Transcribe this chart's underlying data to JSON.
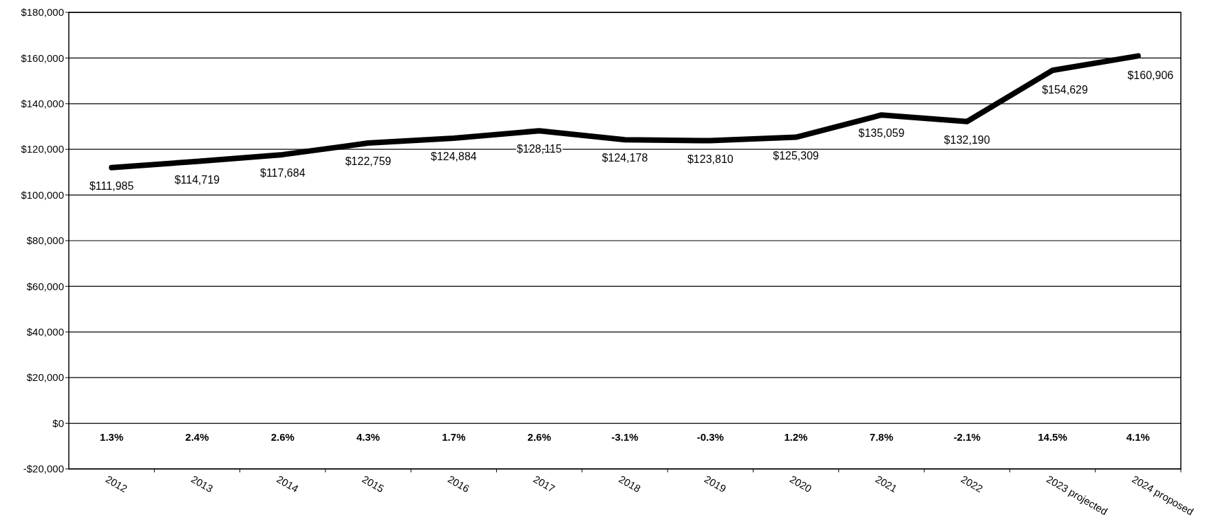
{
  "chart_data": {
    "type": "line",
    "categories": [
      "2012",
      "2013",
      "2014",
      "2015",
      "2016",
      "2017",
      "2018",
      "2019",
      "2020",
      "2021",
      "2022",
      "2023 projected",
      "2024 proposed"
    ],
    "values": [
      111985,
      114719,
      117684,
      122759,
      124884,
      128115,
      124178,
      123810,
      125309,
      135059,
      132190,
      154629,
      160906
    ],
    "value_labels": [
      "$111,985",
      "$114,719",
      "$117,684",
      "$122,759",
      "$124,884",
      "$128,115",
      "$124,178",
      "$123,810",
      "$125,309",
      "$135,059",
      "$132,190",
      "$154,629",
      "$160,906"
    ],
    "color": "#000000",
    "ylim": [
      -20000,
      180000
    ],
    "yticks": [
      {
        "value": -20000,
        "label": "-$20,000"
      },
      {
        "value": 0,
        "label": "$0"
      },
      {
        "value": 20000,
        "label": "$20,000"
      },
      {
        "value": 40000,
        "label": "$40,000"
      },
      {
        "value": 60000,
        "label": "$60,000"
      },
      {
        "value": 80000,
        "label": "$80,000"
      },
      {
        "value": 100000,
        "label": "$100,000"
      },
      {
        "value": 120000,
        "label": "$120,000"
      },
      {
        "value": 140000,
        "label": "$140,000"
      },
      {
        "value": 160000,
        "label": "$160,000"
      },
      {
        "value": 180000,
        "label": "$180,000"
      }
    ],
    "grid": "y",
    "marker": "none",
    "line_style": "solid",
    "annotations": [
      "1.3%",
      "2.4%",
      "2.6%",
      "4.3%",
      "1.7%",
      "2.6%",
      "-3.1%",
      "-0.3%",
      "1.2%",
      "7.8%",
      "-2.1%",
      "14.5%",
      "4.1%"
    ]
  }
}
